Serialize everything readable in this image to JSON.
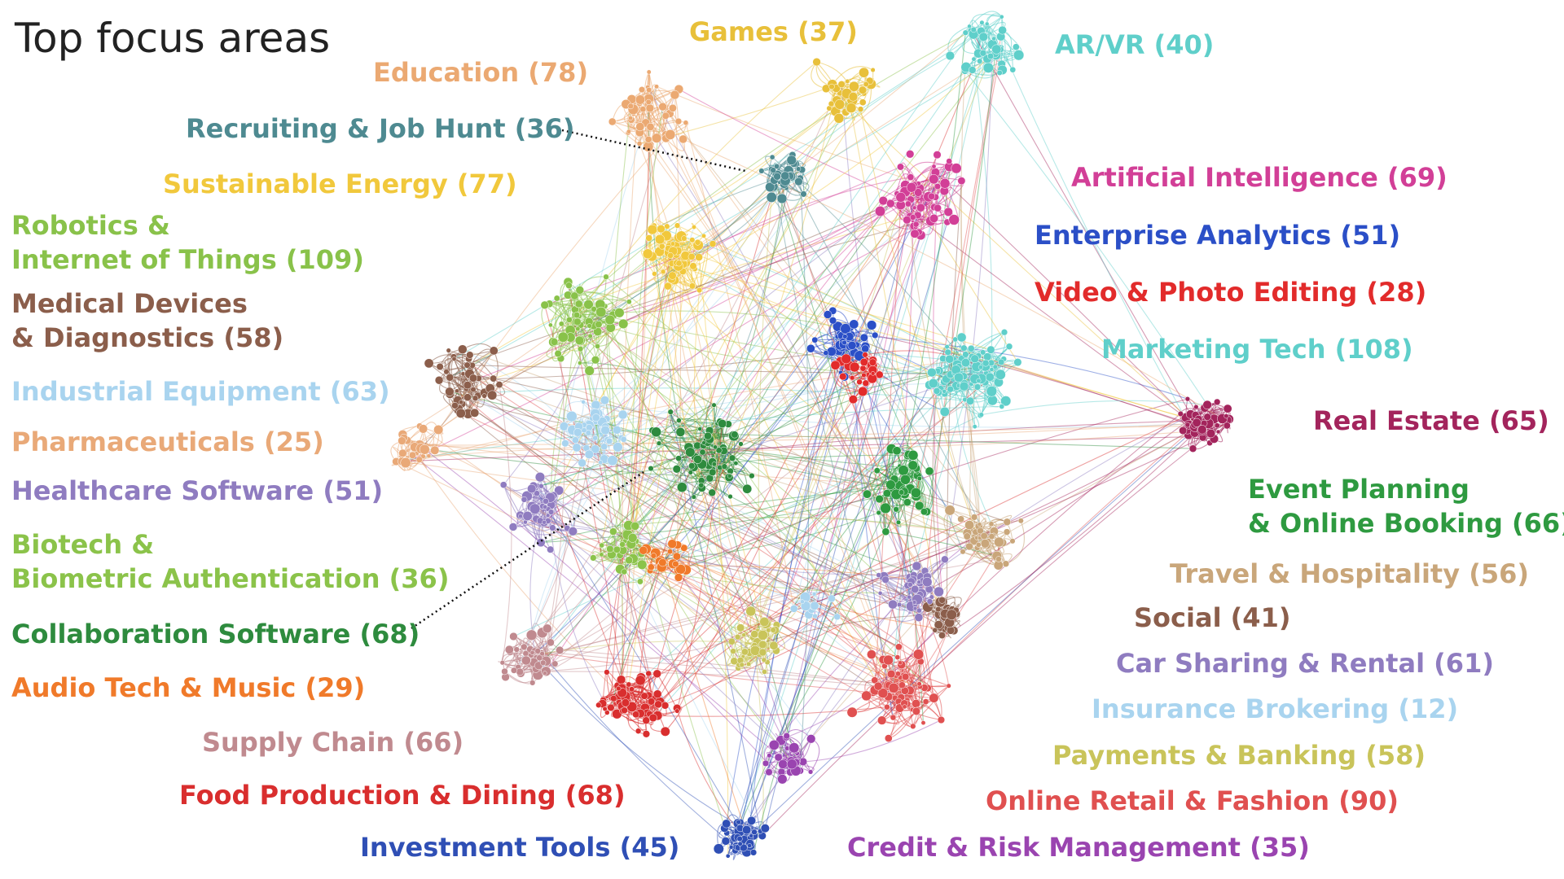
{
  "title": "Top focus areas",
  "clusters": [
    {
      "id": "games",
      "lines": [
        "Games (37)"
      ],
      "color": "#e8c03a"
    },
    {
      "id": "arvr",
      "lines": [
        "AR/VR (40)"
      ],
      "color": "#5fcfca"
    },
    {
      "id": "education",
      "lines": [
        "Education (78)"
      ],
      "color": "#eba972"
    },
    {
      "id": "recruiting",
      "lines": [
        "Recruiting & Job Hunt (36)"
      ],
      "color": "#4e8a91"
    },
    {
      "id": "sustainable",
      "lines": [
        "Sustainable Energy (77)"
      ],
      "color": "#f1c83c"
    },
    {
      "id": "robotics",
      "lines": [
        "Robotics &",
        "Internet of Things (109)"
      ],
      "color": "#89c24a"
    },
    {
      "id": "medical",
      "lines": [
        "Medical Devices",
        "& Diagnostics (58)"
      ],
      "color": "#8b5e4b"
    },
    {
      "id": "industrial",
      "lines": [
        "Industrial Equipment (63)"
      ],
      "color": "#a9d4ef"
    },
    {
      "id": "pharma",
      "lines": [
        "Pharmaceuticals (25)"
      ],
      "color": "#e9a978"
    },
    {
      "id": "healthcare",
      "lines": [
        "Healthcare Software (51)"
      ],
      "color": "#8f7cc0"
    },
    {
      "id": "biotech",
      "lines": [
        "Biotech &",
        "Biometric Authentication (36)"
      ],
      "color": "#8bc34a"
    },
    {
      "id": "collab",
      "lines": [
        "Collaboration Software (68)"
      ],
      "color": "#2e8b3e"
    },
    {
      "id": "audio",
      "lines": [
        "Audio Tech & Music (29)"
      ],
      "color": "#f07a2a"
    },
    {
      "id": "supply",
      "lines": [
        "Supply Chain (66)"
      ],
      "color": "#c08a8f"
    },
    {
      "id": "food",
      "lines": [
        "Food Production & Dining (68)"
      ],
      "color": "#d92e2e"
    },
    {
      "id": "investment",
      "lines": [
        "Investment Tools (45)"
      ],
      "color": "#2f4fb5"
    },
    {
      "id": "ai",
      "lines": [
        "Artificial Intelligence (69)"
      ],
      "color": "#d23f97"
    },
    {
      "id": "enterprise",
      "lines": [
        "Enterprise Analytics (51)"
      ],
      "color": "#2b4fc7"
    },
    {
      "id": "video",
      "lines": [
        "Video & Photo Editing (28)"
      ],
      "color": "#e22b2b"
    },
    {
      "id": "marketing",
      "lines": [
        "Marketing Tech (108)"
      ],
      "color": "#5fcfca"
    },
    {
      "id": "realestate",
      "lines": [
        "Real Estate (65)"
      ],
      "color": "#a3245c"
    },
    {
      "id": "event",
      "lines": [
        "Event Planning",
        "& Online Booking (66)"
      ],
      "color": "#2e9a40"
    },
    {
      "id": "travel",
      "lines": [
        "Travel & Hospitality (56)"
      ],
      "color": "#c9a67a"
    },
    {
      "id": "social",
      "lines": [
        "Social (41)"
      ],
      "color": "#8b5e4b"
    },
    {
      "id": "carsharing",
      "lines": [
        "Car Sharing & Rental (61)"
      ],
      "color": "#8f7cc0"
    },
    {
      "id": "insurance",
      "lines": [
        "Insurance Brokering (12)"
      ],
      "color": "#a9d4ef"
    },
    {
      "id": "payments",
      "lines": [
        "Payments & Banking (58)"
      ],
      "color": "#c9c45a"
    },
    {
      "id": "retail",
      "lines": [
        "Online Retail & Fashion (90)"
      ],
      "color": "#e05050"
    },
    {
      "id": "credit",
      "lines": [
        "Credit & Risk Management (35)"
      ],
      "color": "#9a44b0"
    }
  ]
}
